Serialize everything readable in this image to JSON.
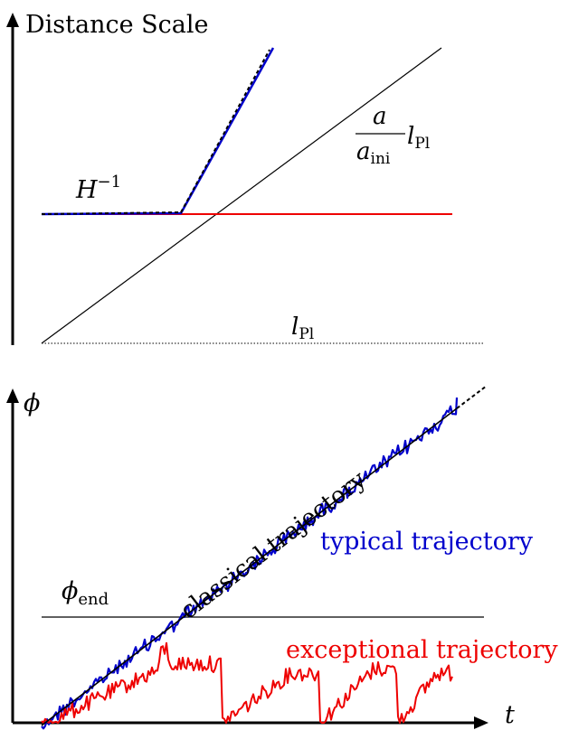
{
  "top_panel": {
    "y_axis_label": "Distance Scale",
    "hubble_label_base": "H",
    "hubble_label_exp": "−1",
    "scale_label_num": "a",
    "scale_label_den_base": "a",
    "scale_label_den_sub": "ini",
    "scale_label_l": "l",
    "scale_label_l_sub": "Pl",
    "planck_label_base": "l",
    "planck_label_sub": "Pl"
  },
  "bottom_panel": {
    "y_axis_label": "ϕ",
    "x_axis_label": "t",
    "end_label_base": "ϕ",
    "end_label_sub": "end",
    "classical_label": "classical trajectory",
    "typical_label": "typical trajectory",
    "exceptional_label": "exceptional trajectory"
  },
  "colors": {
    "axis": "#000000",
    "typical": "#0000cc",
    "exceptional": "#ee0000",
    "classical": "#000000"
  }
}
